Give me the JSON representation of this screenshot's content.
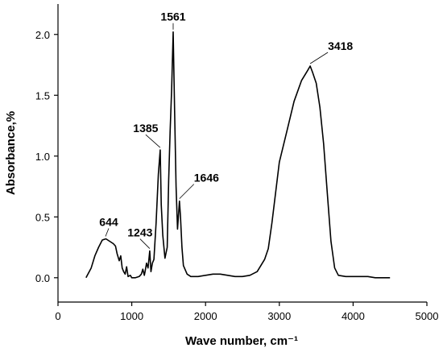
{
  "chart_data": {
    "type": "line",
    "xlabel": "Wave number, cm⁻¹",
    "ylabel": "Absorbance,%",
    "xlim": [
      0,
      5000
    ],
    "ylim": [
      -0.2,
      2.25
    ],
    "xticks": [
      "0",
      "1000",
      "2000",
      "3000",
      "4000",
      "5000"
    ],
    "yticks": [
      "0.0",
      "0.5",
      "1.0",
      "1.5",
      "2.0"
    ],
    "xtick_values": [
      0,
      1000,
      2000,
      3000,
      4000,
      5000
    ],
    "ytick_values": [
      0.0,
      0.5,
      1.0,
      1.5,
      2.0
    ],
    "grid": false,
    "line_color": "#000000",
    "series": [
      {
        "x": [
          380,
          450,
          500,
          550,
          600,
          650,
          700,
          750,
          780,
          800,
          830,
          850,
          870,
          890,
          910,
          930,
          950,
          980,
          1000,
          1050,
          1100,
          1130,
          1150,
          1170,
          1180,
          1200,
          1220,
          1243,
          1260,
          1280,
          1300,
          1330,
          1360,
          1385,
          1400,
          1420,
          1450,
          1480,
          1500,
          1520,
          1540,
          1561,
          1580,
          1600,
          1620,
          1646,
          1660,
          1680,
          1700,
          1750,
          1800,
          1900,
          2000,
          2100,
          2200,
          2300,
          2400,
          2500,
          2600,
          2700,
          2800,
          2850,
          2900,
          2950,
          3000,
          3100,
          3200,
          3300,
          3380,
          3418,
          3450,
          3500,
          3550,
          3600,
          3650,
          3700,
          3750,
          3800,
          3900,
          4000,
          4100,
          4200,
          4300,
          4400,
          4500
        ],
        "values": [
          0.0,
          0.08,
          0.18,
          0.25,
          0.31,
          0.32,
          0.3,
          0.28,
          0.26,
          0.2,
          0.14,
          0.18,
          0.08,
          0.05,
          0.03,
          0.09,
          0.01,
          0.02,
          0.0,
          0.0,
          0.01,
          0.03,
          0.07,
          0.02,
          0.05,
          0.12,
          0.08,
          0.22,
          0.05,
          0.12,
          0.15,
          0.45,
          0.85,
          1.05,
          0.6,
          0.35,
          0.16,
          0.25,
          0.8,
          1.2,
          1.55,
          2.02,
          1.4,
          0.75,
          0.4,
          0.63,
          0.5,
          0.25,
          0.1,
          0.03,
          0.01,
          0.01,
          0.02,
          0.03,
          0.03,
          0.02,
          0.01,
          0.01,
          0.02,
          0.05,
          0.15,
          0.24,
          0.45,
          0.7,
          0.95,
          1.2,
          1.45,
          1.62,
          1.7,
          1.74,
          1.69,
          1.6,
          1.4,
          1.1,
          0.7,
          0.3,
          0.08,
          0.02,
          0.01,
          0.01,
          0.01,
          0.01,
          0.0,
          0.0,
          0.0
        ]
      }
    ],
    "annotations": [
      {
        "text": "1561",
        "x": 1561,
        "y": 2.02
      },
      {
        "text": "3418",
        "x": 3418,
        "y": 1.74
      },
      {
        "text": "1385",
        "x": 1385,
        "y": 1.05
      },
      {
        "text": "1646",
        "x": 1646,
        "y": 0.63
      },
      {
        "text": "644",
        "x": 644,
        "y": 0.32
      },
      {
        "text": "1243",
        "x": 1243,
        "y": 0.22
      }
    ]
  }
}
